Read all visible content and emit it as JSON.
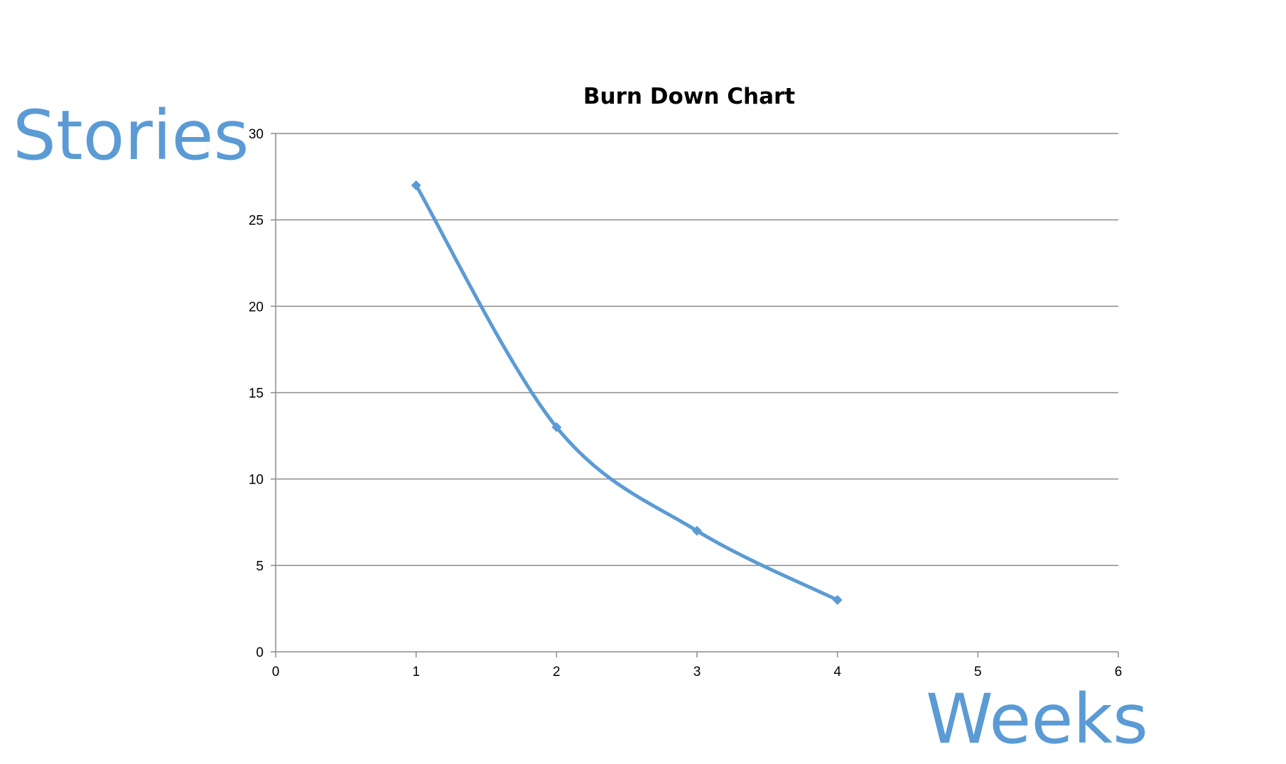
{
  "chart_data": {
    "type": "line",
    "title": "Burn Down Chart",
    "xlabel": "Weeks",
    "ylabel": "Stories",
    "xlim": [
      0,
      6
    ],
    "ylim": [
      0,
      30
    ],
    "xticks": [
      "0",
      "1",
      "2",
      "3",
      "4",
      "5",
      "6"
    ],
    "yticks": [
      "0",
      "5",
      "10",
      "15",
      "20",
      "25",
      "30"
    ],
    "grid": "horizontal",
    "legend": "none",
    "series": [
      {
        "color": "#5b9bd5",
        "x": [
          1,
          2,
          3,
          4
        ],
        "y": [
          27,
          13,
          7,
          3
        ],
        "smooth": true,
        "marker": "diamond"
      }
    ]
  }
}
